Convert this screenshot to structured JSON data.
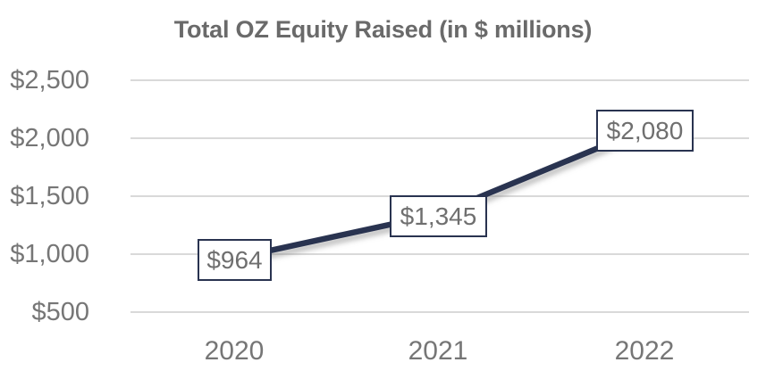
{
  "chart_data": {
    "type": "line",
    "title": "Total OZ Equity Raised (in $ millions)",
    "categories": [
      "2020",
      "2021",
      "2022"
    ],
    "series": [
      {
        "name": "Total OZ Equity Raised",
        "values": [
          964,
          1345,
          2080
        ]
      }
    ],
    "values": [
      964,
      1345,
      2080
    ],
    "data_labels": [
      "$964",
      "$1,345",
      "$2,080"
    ],
    "y_axis": {
      "ticks": [
        "$2,500",
        "$2,000",
        "$1,500",
        "$1,000",
        "$500"
      ],
      "tick_values": [
        2500,
        2000,
        1500,
        1000,
        500
      ],
      "min": 500,
      "max": 2500,
      "step": 500,
      "format": "currency"
    },
    "grid": true,
    "legend": "none",
    "colors": {
      "line": "#293350",
      "label_border": "#293350",
      "label_bg": "#ffffff",
      "gridline": "#d9d9d9",
      "axis_text": "#767676",
      "title_text": "#6a6a6a",
      "label_text": "#6f6f6f",
      "background": "#ffffff"
    }
  }
}
